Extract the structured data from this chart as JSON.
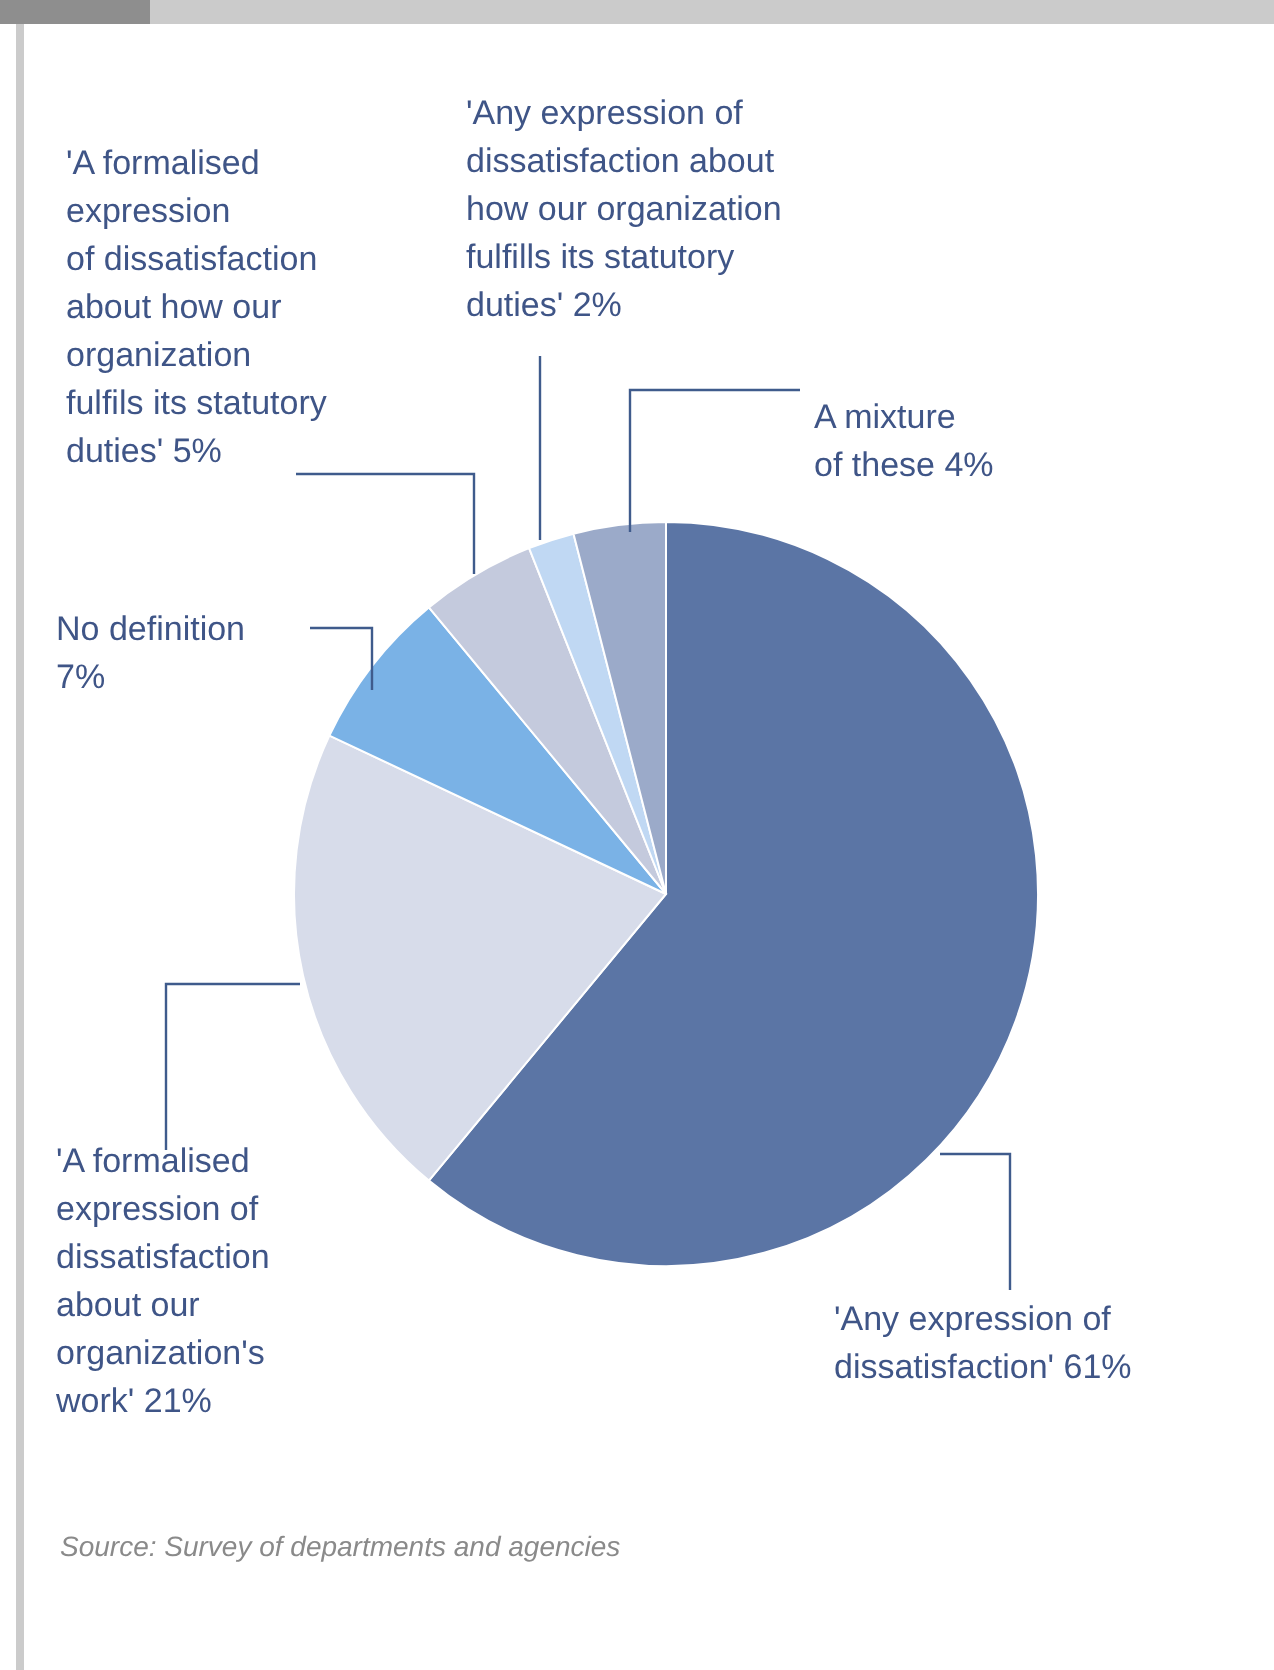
{
  "chart_data": {
    "type": "pie",
    "categories": [
      "'Any expression of dissatisfaction'",
      "'A formalised expression of dissatisfaction about our organization's work'",
      "No definition",
      "'A formalised expression of dissatisfaction about how our organization fulfils its statutory duties'",
      "'Any expression of dissatisfaction about how our organization fulfills its statutory duties'",
      "A mixture of these"
    ],
    "values": [
      61,
      21,
      7,
      5,
      2,
      4
    ],
    "value_labels": [
      "61%",
      "21%",
      "7%",
      "5%",
      "2%",
      "4%"
    ],
    "colors": [
      "#5b75a5",
      "#d7dcea",
      "#7ab2e6",
      "#c4cadd",
      "#c0d8f3",
      "#9baac9"
    ],
    "annotations": [
      "Source: Survey of departments and agencies"
    ]
  }
}
